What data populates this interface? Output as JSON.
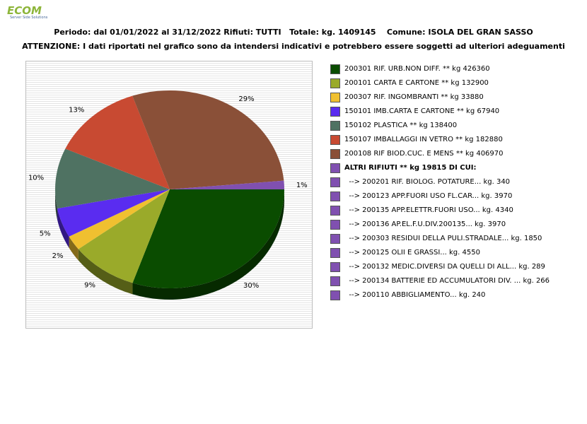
{
  "logo": {
    "text": "ECOM",
    "sub": "Server Side Solutions"
  },
  "header": {
    "line1": "Periodo: dal 01/01/2022 al 31/12/2022 Rifiuti: TUTTI   Totale: kg. 1409145    Comune: ISOLA DEL GRAN SASSO",
    "line2": "ATTENZIONE: I dati riportati nel grafico sono da intendersi indicativi e potrebbero essere soggetti ad ulteriori adeguamenti"
  },
  "chart_data": {
    "type": "pie",
    "title": "",
    "grid": true,
    "legend_position": "right",
    "slices": [
      {
        "label": "200301 RIF. URB.NON DIFF. ** kg 426360",
        "value": 426360,
        "percent_label": "30%",
        "color": "#0a4c00"
      },
      {
        "label": "200101 CARTA E CARTONE ** kg 132900",
        "value": 132900,
        "percent_label": "9%",
        "color": "#9aaa2a"
      },
      {
        "label": "200307 RIF. INGOMBRANTI ** kg 33880",
        "value": 33880,
        "percent_label": "2%",
        "color": "#f0c030"
      },
      {
        "label": "150101 IMB.CARTA E CARTONE ** kg 67940",
        "value": 67940,
        "percent_label": "5%",
        "color": "#5a2cf0"
      },
      {
        "label": "150102 PLASTICA ** kg 138400",
        "value": 138400,
        "percent_label": "10%",
        "color": "#4f7262"
      },
      {
        "label": "150107 IMBALLAGGI IN VETRO ** kg 182880",
        "value": 182880,
        "percent_label": "13%",
        "color": "#c84a32"
      },
      {
        "label": "200108 RIF BIOD.CUC. E MENS ** kg 406970",
        "value": 406970,
        "percent_label": "29%",
        "color": "#8a5038"
      },
      {
        "label": "ALTRI RIFIUTI ** kg 19815 DI CUI:",
        "value": 19815,
        "percent_label": "1%",
        "color": "#8050b0"
      }
    ],
    "sub_items": [
      {
        "label": "-->  200201 RIF. BIOLOG. POTATURE... kg. 340",
        "color": "#8050b0"
      },
      {
        "label": "-->  200123 APP.FUORI USO FL.CAR... kg. 3970",
        "color": "#8050b0"
      },
      {
        "label": "-->  200135 APP.ELETTR.FUORI USO... kg. 4340",
        "color": "#8050b0"
      },
      {
        "label": "-->  200136 AP.EL.F.U.DIV.200135... kg. 3970",
        "color": "#8050b0"
      },
      {
        "label": "-->  200303 RESIDUI DELLA PULI.STRADALE... kg. 1850",
        "color": "#8050b0"
      },
      {
        "label": "-->  200125 OLII E GRASSI... kg. 4550",
        "color": "#8050b0"
      },
      {
        "label": "-->  200132 MEDIC.DIVERSI DA QUELLI DI ALL... kg. 289",
        "color": "#8050b0"
      },
      {
        "label": "-->  200134 BATTERIE ED ACCUMULATORI DIV. ... kg. 266",
        "color": "#8050b0"
      },
      {
        "label": "-->  200110 ABBIGLIAMENTO... kg. 240",
        "color": "#8050b0"
      }
    ]
  }
}
